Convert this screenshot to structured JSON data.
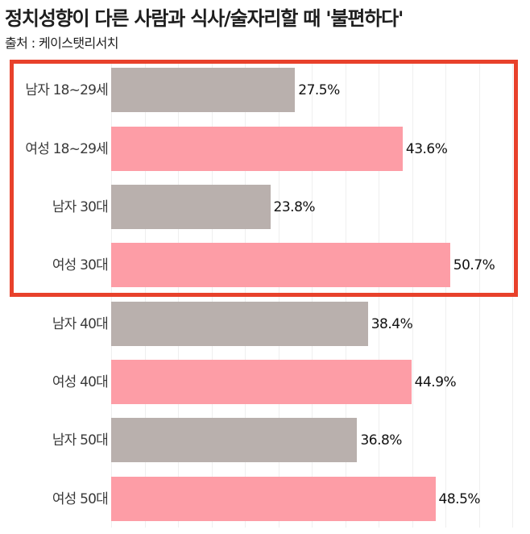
{
  "header": {
    "title": "정치성향이 다른 사람과 식사/술자리할 때 '불편하다'",
    "source": "출처 : 케이스탯리서치"
  },
  "colors": {
    "male": "#b9b0ad",
    "female": "#fd9da6",
    "highlight": "#e8412b",
    "gridline": "#efefef"
  },
  "highlight_box": {
    "rows": [
      0,
      1,
      2,
      3
    ]
  },
  "chart_data": {
    "type": "bar",
    "orientation": "horizontal",
    "title": "정치성향이 다른 사람과 식사/술자리할 때 '불편하다'",
    "subtitle": "출처 : 케이스탯리서치",
    "xlabel": "",
    "ylabel": "",
    "xlim": [
      0,
      60
    ],
    "grid": true,
    "legend": null,
    "categories": [
      "남자 18~29세",
      "여성 18~29세",
      "남자 30대",
      "여성 30대",
      "남자 40대",
      "여성 40대",
      "남자 50대",
      "여성 50대"
    ],
    "values": [
      27.5,
      43.6,
      23.8,
      50.7,
      38.4,
      44.9,
      36.8,
      48.5
    ],
    "value_labels": [
      "27.5%",
      "43.6%",
      "23.8%",
      "50.7%",
      "38.4%",
      "44.9%",
      "36.8%",
      "48.5%"
    ],
    "genders": [
      "male",
      "female",
      "male",
      "female",
      "male",
      "female",
      "male",
      "female"
    ],
    "annotations": [
      "Red box highlights the 18~29세 and 30대 rows"
    ]
  }
}
